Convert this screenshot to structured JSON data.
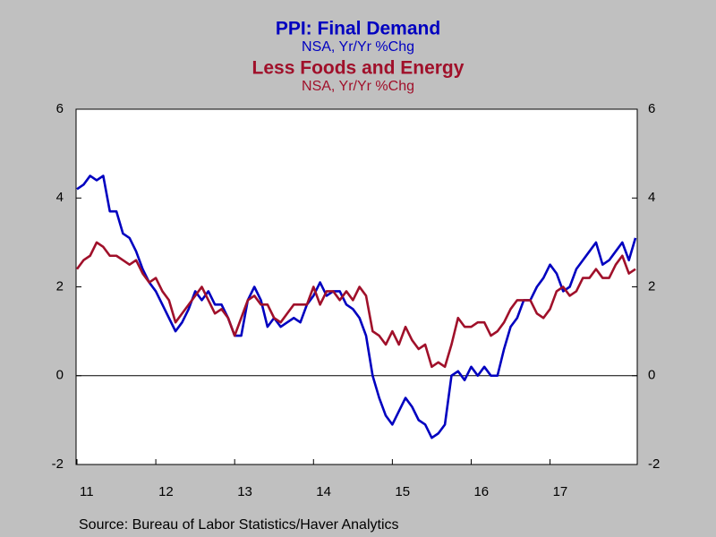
{
  "chart_data": {
    "type": "line",
    "source": "Source:  Bureau of Labor Statistics/Haver Analytics",
    "categories": [
      "11",
      null,
      null,
      null,
      null,
      null,
      null,
      null,
      null,
      null,
      null,
      null,
      "12",
      null,
      null,
      null,
      null,
      null,
      null,
      null,
      null,
      null,
      null,
      null,
      "13",
      null,
      null,
      null,
      null,
      null,
      null,
      null,
      null,
      null,
      null,
      null,
      "14",
      null,
      null,
      null,
      null,
      null,
      null,
      null,
      null,
      null,
      null,
      null,
      "15",
      null,
      null,
      null,
      null,
      null,
      null,
      null,
      null,
      null,
      null,
      null,
      "16",
      null,
      null,
      null,
      null,
      null,
      null,
      null,
      null,
      null,
      null,
      null,
      "17",
      null,
      null,
      null,
      null,
      null,
      null,
      null,
      null,
      null,
      null,
      null,
      null,
      null
    ],
    "series": [
      {
        "name": "PPI: Final Demand",
        "subtitle": "NSA, Yr/Yr %Chg",
        "color": "#0000c0",
        "values": [
          4.2,
          4.3,
          4.5,
          4.4,
          4.5,
          3.7,
          3.7,
          3.2,
          3.1,
          2.8,
          2.4,
          2.1,
          1.9,
          1.6,
          1.3,
          1.0,
          1.2,
          1.5,
          1.9,
          1.7,
          1.9,
          1.6,
          1.6,
          1.3,
          0.9,
          0.9,
          1.7,
          2.0,
          1.7,
          1.1,
          1.3,
          1.1,
          1.2,
          1.3,
          1.2,
          1.6,
          1.8,
          2.1,
          1.8,
          1.9,
          1.9,
          1.6,
          1.5,
          1.3,
          0.9,
          0.0,
          -0.5,
          -0.9,
          -1.1,
          -0.8,
          -0.5,
          -0.7,
          -1.0,
          -1.1,
          -1.4,
          -1.3,
          -1.1,
          0.0,
          0.1,
          -0.1,
          0.2,
          0.0,
          0.2,
          0.0,
          0.0,
          0.6,
          1.1,
          1.3,
          1.7,
          1.7,
          2.0,
          2.2,
          2.5,
          2.3,
          1.9,
          2.0,
          2.4,
          2.6,
          2.8,
          3.0,
          2.5,
          2.6,
          2.8,
          3.0,
          2.6,
          3.1
        ]
      },
      {
        "name": "Less Foods and Energy",
        "subtitle": "NSA, Yr/Yr %Chg",
        "color": "#a0102a",
        "values": [
          2.4,
          2.6,
          2.7,
          3.0,
          2.9,
          2.7,
          2.7,
          2.6,
          2.5,
          2.6,
          2.3,
          2.1,
          2.2,
          1.9,
          1.7,
          1.2,
          1.4,
          1.6,
          1.8,
          2.0,
          1.7,
          1.4,
          1.5,
          1.3,
          0.9,
          1.3,
          1.7,
          1.8,
          1.6,
          1.6,
          1.3,
          1.2,
          1.4,
          1.6,
          1.6,
          1.6,
          2.0,
          1.6,
          1.9,
          1.9,
          1.7,
          1.9,
          1.7,
          2.0,
          1.8,
          1.0,
          0.9,
          0.7,
          1.0,
          0.7,
          1.1,
          0.8,
          0.6,
          0.7,
          0.2,
          0.3,
          0.2,
          0.7,
          1.3,
          1.1,
          1.1,
          1.2,
          1.2,
          0.9,
          1.0,
          1.2,
          1.5,
          1.7,
          1.7,
          1.7,
          1.4,
          1.3,
          1.5,
          1.9,
          2.0,
          1.8,
          1.9,
          2.2,
          2.2,
          2.4,
          2.2,
          2.2,
          2.5,
          2.7,
          2.3,
          2.4
        ],
        "axis": "y2"
      }
    ],
    "ylim": [
      -2,
      6
    ],
    "yticks": [
      -2,
      0,
      2,
      4,
      6
    ],
    "y2lim": [
      -2,
      6
    ],
    "y2ticks": [
      -2,
      0,
      2,
      4,
      6
    ],
    "zero_line": true
  }
}
